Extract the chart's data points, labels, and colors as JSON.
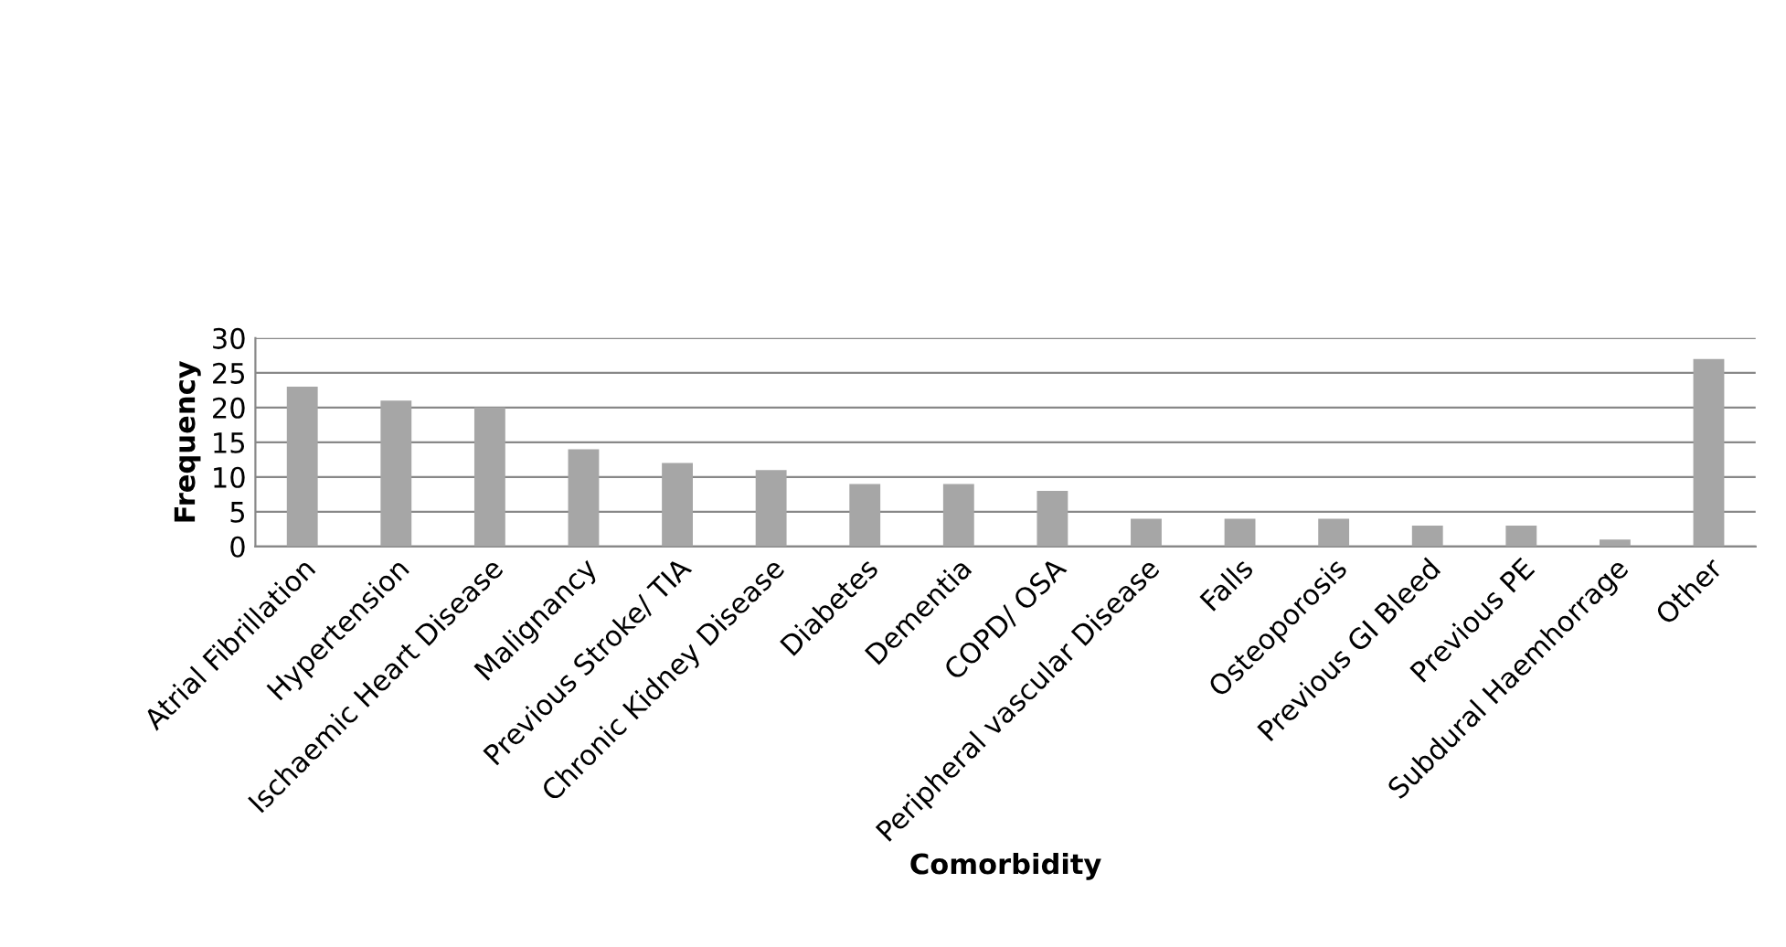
{
  "chart_data": {
    "type": "bar",
    "xlabel": "Comorbidity",
    "ylabel": "Frequency",
    "categories": [
      "Atrial Fibrillation",
      "Hypertension",
      "Ischaemic Heart Disease",
      "Malignancy",
      "Previous Stroke/ TIA",
      "Chronic Kidney Disease",
      "Diabetes",
      "Dementia",
      "COPD/ OSA",
      "Peripheral vascular Disease",
      "Falls",
      "Osteoporosis",
      "Previous GI Bleed",
      "Previous PE",
      "Subdural Haemhorrage",
      "Other"
    ],
    "values": [
      23,
      21,
      20,
      14,
      12,
      11,
      9,
      9,
      8,
      4,
      4,
      4,
      3,
      3,
      1,
      27
    ],
    "color": "#a6a6a6",
    "ylim": [
      0,
      30
    ],
    "yticks": [
      0,
      5,
      10,
      15,
      20,
      25,
      30
    ],
    "grid": "y",
    "legend": false
  }
}
